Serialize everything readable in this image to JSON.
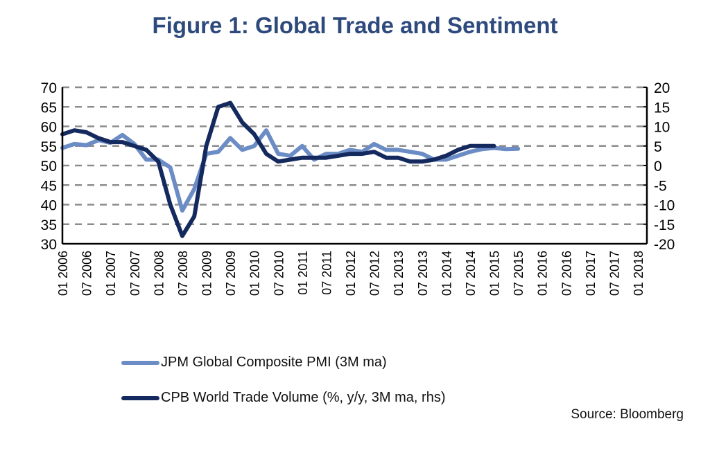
{
  "title": "Figure 1: Global Trade and Sentiment",
  "source": "Source: Bloomberg",
  "colors": {
    "title": "#2e4a7d",
    "pmi": "#6b8cc4",
    "trade": "#14295e",
    "grid": "#8c8c8c",
    "axis": "#000000"
  },
  "chart_data": {
    "type": "line",
    "title": "Figure 1: Global Trade and Sentiment",
    "xlabel": "",
    "ylabel": "",
    "y_left": {
      "range": [
        30,
        70
      ],
      "ticks": [
        70,
        65,
        60,
        55,
        50,
        45,
        40,
        35,
        30
      ]
    },
    "y_right": {
      "range": [
        -20,
        20
      ],
      "ticks": [
        20,
        15,
        10,
        5,
        0,
        -5,
        -10,
        -15,
        -20
      ]
    },
    "x_ticks": [
      "01 2006",
      "07 2006",
      "01 2007",
      "07 2007",
      "01 2008",
      "07 2008",
      "01 2009",
      "07 2009",
      "01 2010",
      "07 2010",
      "01 2011",
      "07 2011",
      "01 2012",
      "07 2012",
      "01 2013",
      "07 2013",
      "01 2014",
      "07 2014",
      "01 2015",
      "07 2015",
      "01 2016",
      "07 2016",
      "01 2017",
      "07 2017",
      "01 2018"
    ],
    "grid": "horizontal-dashed",
    "legend_position": "bottom-left",
    "x_start": "2006-01",
    "x_step": "quarter",
    "series": [
      {
        "name": "JPM Global Composite PMI (3M ma)",
        "axis": "left",
        "values": [
          54.5,
          55.5,
          55.2,
          56.5,
          55.8,
          57.8,
          55.5,
          51.5,
          51.5,
          49.5,
          38.5,
          44,
          53,
          53.5,
          57,
          54,
          55,
          59,
          53,
          52.5,
          55,
          51.5,
          53,
          53,
          54,
          53.5,
          55.5,
          54,
          54,
          53.5,
          53,
          51.5,
          51.5,
          52.5,
          53.5,
          54.2,
          54.5,
          54.2,
          54.3
        ]
      },
      {
        "name": "CPB World Trade Volume (%, y/y, 3M ma, rhs)",
        "axis": "right",
        "values": [
          8,
          9,
          8.5,
          7,
          6,
          6,
          5,
          4,
          1,
          -10,
          -18,
          -13,
          5,
          15,
          16,
          11,
          8,
          3,
          1,
          1.5,
          2,
          2,
          2,
          2.5,
          3,
          3,
          3.5,
          2,
          2,
          1,
          1,
          1.5,
          2.5,
          4,
          5,
          5,
          5
        ]
      }
    ]
  },
  "legend": {
    "items": [
      {
        "label": "JPM Global Composite PMI (3M ma)"
      },
      {
        "label": "CPB World Trade Volume (%, y/y, 3M ma, rhs)"
      }
    ]
  }
}
